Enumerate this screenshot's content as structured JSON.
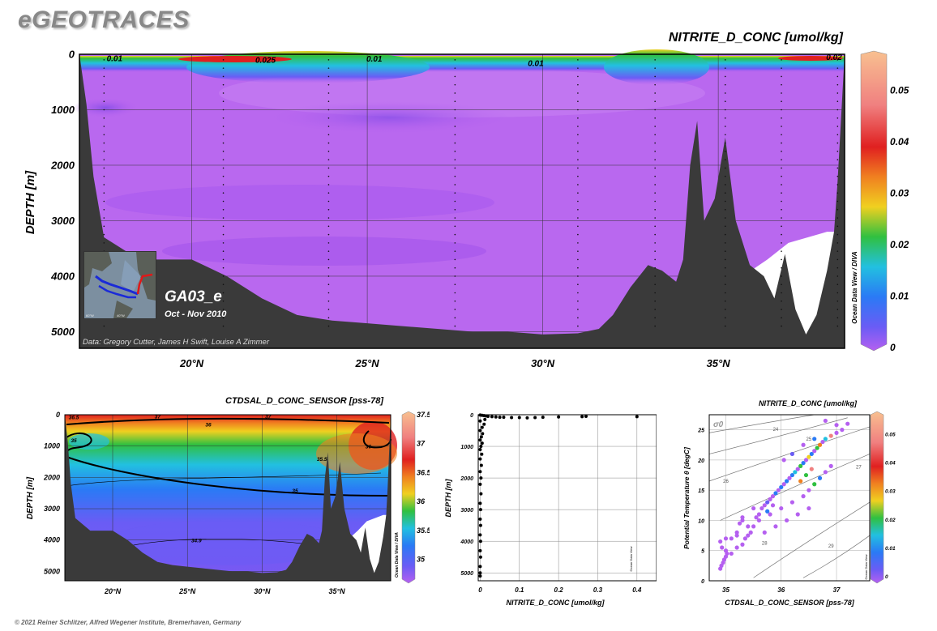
{
  "app_title": "eGEOTRACES",
  "footer": "© 2021 Reiner Schlitzer, Alfred Wegener Institute, Bremerhaven, Germany",
  "colors": {
    "seafloor": "#3a3a3a",
    "colormap": [
      "#b560f0",
      "#6a5cf5",
      "#2a7af5",
      "#22c0e0",
      "#30c040",
      "#f0d020",
      "#f08020",
      "#e02020",
      "#f08080",
      "#f8c090"
    ]
  },
  "main_section": {
    "title": "NITRITE_D_CONC [umol/kg]",
    "section_name": "GA03_e",
    "period": "Oct - Nov 2010",
    "credit": "Data: Gregory Cutter, James H Swift, Louise A Zimmer",
    "side_label": "Ocean Data View / DIVA"
  },
  "small_section": {
    "title": "CTDSAL_D_CONC_SENSOR [pss-78]",
    "side_label": "Ocean Data View / DIVA"
  },
  "scatter_plot": {
    "side_label": "Ocean Data View"
  },
  "ts_plot": {
    "title": "NITRITE_D_CONC [umol/kg]",
    "sigma_label": "σ0",
    "side_label": "Ocean Data View"
  },
  "chart_data": [
    {
      "type": "heatmap",
      "title": "NITRITE_D_CONC [umol/kg]",
      "xlabel": "",
      "ylabel": "DEPTH [m]",
      "x_ticks": [
        "20°N",
        "25°N",
        "30°N",
        "35°N"
      ],
      "x_tick_values": [
        20,
        25,
        30,
        35
      ],
      "xlim": [
        16.8,
        38.6
      ],
      "y_ticks": [
        "0",
        "1000",
        "2000",
        "3000",
        "4000",
        "5000"
      ],
      "y_tick_values": [
        0,
        1000,
        2000,
        3000,
        4000,
        5000
      ],
      "ylim": [
        0,
        5300
      ],
      "colorbar": {
        "ticks": [
          "0",
          "0.01",
          "0.02",
          "0.03",
          "0.04",
          "0.05"
        ],
        "tick_values": [
          0,
          0.01,
          0.02,
          0.03,
          0.04,
          0.05
        ],
        "range": [
          0,
          0.057
        ]
      },
      "contour_labels": [
        {
          "text": "0.01",
          "x": 17.8,
          "depth": 80
        },
        {
          "text": "0.025",
          "x": 22.1,
          "depth": 110
        },
        {
          "text": "0.01",
          "x": 25.2,
          "depth": 90
        },
        {
          "text": "0.01",
          "x": 29.8,
          "depth": 170
        },
        {
          "text": "0.02",
          "x": 38.3,
          "depth": 60
        }
      ],
      "stations_x": [
        17.5,
        20.9,
        23.9,
        27.5,
        31.0,
        33.2,
        35.2,
        36.8,
        38.4
      ],
      "seafloor": [
        [
          16.8,
          0
        ],
        [
          17.0,
          900
        ],
        [
          17.2,
          2200
        ],
        [
          17.5,
          3300
        ],
        [
          18.5,
          3700
        ],
        [
          20.0,
          3700
        ],
        [
          21.0,
          4000
        ],
        [
          22.0,
          4400
        ],
        [
          23.0,
          4700
        ],
        [
          24.0,
          4800
        ],
        [
          25.0,
          4850
        ],
        [
          26.0,
          4900
        ],
        [
          27.0,
          4950
        ],
        [
          28.0,
          5000
        ],
        [
          29.0,
          5000
        ],
        [
          30.0,
          5050
        ],
        [
          31.0,
          5030
        ],
        [
          31.6,
          4950
        ],
        [
          32.0,
          4700
        ],
        [
          32.5,
          4200
        ],
        [
          33.0,
          3800
        ],
        [
          33.4,
          3900
        ],
        [
          33.8,
          4100
        ],
        [
          34.0,
          3700
        ],
        [
          34.2,
          2000
        ],
        [
          34.4,
          1200
        ],
        [
          34.6,
          3000
        ],
        [
          34.9,
          2600
        ],
        [
          35.2,
          1500
        ],
        [
          35.5,
          3000
        ],
        [
          35.9,
          3800
        ],
        [
          36.3,
          4000
        ],
        [
          36.6,
          4400
        ],
        [
          36.9,
          3600
        ],
        [
          37.2,
          4600
        ],
        [
          37.5,
          5050
        ],
        [
          37.8,
          4700
        ],
        [
          38.1,
          3900
        ],
        [
          38.3,
          3200
        ],
        [
          38.4,
          2300
        ],
        [
          38.6,
          0
        ]
      ],
      "blank_region": [
        [
          35.7,
          4000
        ],
        [
          36.4,
          3700
        ],
        [
          37.0,
          3400
        ],
        [
          38.1,
          3200
        ],
        [
          38.3,
          3200
        ],
        [
          38.0,
          5100
        ],
        [
          37.0,
          5100
        ],
        [
          36.2,
          4400
        ]
      ]
    },
    {
      "type": "heatmap",
      "title": "CTDSAL_D_CONC_SENSOR [pss-78]",
      "xlabel": "",
      "ylabel": "DEPTH [m]",
      "x_ticks": [
        "20°N",
        "25°N",
        "30°N",
        "35°N"
      ],
      "x_tick_values": [
        20,
        25,
        30,
        35
      ],
      "xlim": [
        16.8,
        38.6
      ],
      "y_ticks": [
        "0",
        "1000",
        "2000",
        "3000",
        "4000",
        "5000"
      ],
      "y_tick_values": [
        0,
        1000,
        2000,
        3000,
        4000,
        5000
      ],
      "ylim": [
        0,
        5300
      ],
      "colorbar": {
        "ticks": [
          "35",
          "35.5",
          "36",
          "36.5",
          "37",
          "37.5"
        ],
        "tick_values": [
          35,
          35.5,
          36,
          36.5,
          37,
          37.5
        ],
        "range": [
          34.7,
          37.5
        ]
      },
      "contour_labels": [
        {
          "text": "36.5",
          "x": 17.4,
          "depth": 60
        },
        {
          "text": "37",
          "x": 23.0,
          "depth": 40
        },
        {
          "text": "37",
          "x": 30.4,
          "depth": 40
        },
        {
          "text": "36",
          "x": 26.4,
          "depth": 300
        },
        {
          "text": "35",
          "x": 17.4,
          "depth": 800
        },
        {
          "text": "35.5",
          "x": 34.0,
          "depth": 1400
        },
        {
          "text": "36",
          "x": 37.1,
          "depth": 1000
        },
        {
          "text": "35",
          "x": 32.2,
          "depth": 2400
        },
        {
          "text": "34.9",
          "x": 25.6,
          "depth": 4000
        }
      ]
    },
    {
      "type": "scatter",
      "title": "",
      "xlabel": "NITRITE_D_CONC [umol/kg]",
      "ylabel": "DEPTH [m]",
      "x_ticks": [
        "0",
        "0.1",
        "0.2",
        "0.3",
        "0.4"
      ],
      "x_tick_values": [
        0,
        0.1,
        0.2,
        0.3,
        0.4
      ],
      "xlim": [
        -0.005,
        0.45
      ],
      "y_ticks": [
        "0",
        "1000",
        "2000",
        "3000",
        "4000",
        "5000"
      ],
      "y_tick_values": [
        0,
        1000,
        2000,
        3000,
        4000,
        5000
      ],
      "ylim": [
        0,
        5250
      ],
      "points": [
        [
          0.0,
          10
        ],
        [
          0.005,
          20
        ],
        [
          0.01,
          30
        ],
        [
          0.015,
          40
        ],
        [
          0.02,
          50
        ],
        [
          0.03,
          60
        ],
        [
          0.04,
          70
        ],
        [
          0.05,
          80
        ],
        [
          0.06,
          80
        ],
        [
          0.08,
          90
        ],
        [
          0.1,
          90
        ],
        [
          0.12,
          100
        ],
        [
          0.14,
          90
        ],
        [
          0.16,
          80
        ],
        [
          0.2,
          70
        ],
        [
          0.26,
          60
        ],
        [
          0.27,
          50
        ],
        [
          0.4,
          60
        ],
        [
          0.012,
          150
        ],
        [
          0.0,
          200
        ],
        [
          0.01,
          300
        ],
        [
          0.005,
          400
        ],
        [
          0.0,
          500
        ],
        [
          0.006,
          600
        ],
        [
          0.003,
          700
        ],
        [
          0.0,
          800
        ],
        [
          0.005,
          900
        ],
        [
          0.002,
          1000
        ],
        [
          0.0,
          1100
        ],
        [
          0.004,
          1250
        ],
        [
          0.0,
          1400
        ],
        [
          0.003,
          1600
        ],
        [
          0.0,
          1800
        ],
        [
          0.002,
          2000
        ],
        [
          0.0,
          2200
        ],
        [
          0.002,
          2500
        ],
        [
          0.0,
          2800
        ],
        [
          0.001,
          3000
        ],
        [
          0.0,
          3300
        ],
        [
          0.001,
          3500
        ],
        [
          0.0,
          3800
        ],
        [
          0.001,
          4000
        ],
        [
          0.0,
          4300
        ],
        [
          0.001,
          4500
        ],
        [
          0.0,
          4800
        ],
        [
          0.0,
          5000
        ],
        [
          0.0,
          5100
        ]
      ]
    },
    {
      "type": "scatter",
      "title": "NITRITE_D_CONC [umol/kg]",
      "xlabel": "CTDSAL_D_CONC_SENSOR [pss-78]",
      "ylabel": "Potential Temperature θ [degC]",
      "x_ticks": [
        "35",
        "36",
        "37"
      ],
      "x_tick_values": [
        35,
        36,
        37
      ],
      "xlim": [
        34.7,
        37.6
      ],
      "y_ticks": [
        "0",
        "5",
        "10",
        "15",
        "20",
        "25"
      ],
      "y_tick_values": [
        0,
        5,
        10,
        15,
        20,
        25
      ],
      "ylim": [
        0,
        27.5
      ],
      "isopycnal_labels": [
        "24",
        "25",
        "26",
        "27",
        "28",
        "29"
      ],
      "colorbar": {
        "ticks": [
          "0",
          "0.01",
          "0.02",
          "0.03",
          "0.04",
          "0.05"
        ],
        "tick_values": [
          0,
          0.01,
          0.02,
          0.03,
          0.04,
          0.05
        ],
        "range": [
          0,
          0.057
        ]
      },
      "points": [
        [
          34.9,
          2.0,
          0
        ],
        [
          34.92,
          2.5,
          0
        ],
        [
          34.95,
          3.0,
          0
        ],
        [
          34.97,
          3.5,
          0
        ],
        [
          35.0,
          4.0,
          0
        ],
        [
          35.02,
          4.5,
          0
        ],
        [
          34.93,
          5.5,
          0
        ],
        [
          34.9,
          6.5,
          0
        ],
        [
          35.0,
          5.0,
          0
        ],
        [
          35.1,
          4.5,
          0
        ],
        [
          35.2,
          5.5,
          0
        ],
        [
          35.3,
          6.0,
          0
        ],
        [
          35.35,
          7.0,
          0
        ],
        [
          35.4,
          7.5,
          0
        ],
        [
          35.45,
          8.0,
          0
        ],
        [
          35.5,
          9.0,
          0
        ],
        [
          35.2,
          8.0,
          0
        ],
        [
          35.1,
          7.0,
          0
        ],
        [
          35.25,
          9.5,
          0
        ],
        [
          35.3,
          10.0,
          0
        ],
        [
          35.55,
          10.5,
          0
        ],
        [
          35.6,
          11.0,
          0
        ],
        [
          35.65,
          12.0,
          0
        ],
        [
          35.7,
          12.5,
          0
        ],
        [
          35.75,
          13.0,
          0.005
        ],
        [
          35.8,
          13.5,
          0
        ],
        [
          35.85,
          14.0,
          0
        ],
        [
          35.9,
          14.5,
          0.008
        ],
        [
          35.95,
          15.0,
          0
        ],
        [
          36.0,
          15.5,
          0.01
        ],
        [
          36.05,
          16.0,
          0
        ],
        [
          36.1,
          16.5,
          0.012
        ],
        [
          36.15,
          17.0,
          0
        ],
        [
          36.2,
          17.5,
          0.01
        ],
        [
          36.25,
          18.0,
          0.015
        ],
        [
          36.3,
          18.5,
          0
        ],
        [
          36.35,
          19.0,
          0.02
        ],
        [
          36.4,
          19.5,
          0.01
        ],
        [
          36.45,
          20.0,
          0
        ],
        [
          36.5,
          20.5,
          0.025
        ],
        [
          36.55,
          21.0,
          0.01
        ],
        [
          36.6,
          21.5,
          0
        ],
        [
          36.65,
          22.0,
          0.02
        ],
        [
          36.7,
          22.5,
          0.03
        ],
        [
          36.75,
          23.0,
          0
        ],
        [
          36.8,
          23.5,
          0.015
        ],
        [
          36.9,
          24.0,
          0.04
        ],
        [
          37.0,
          24.5,
          0
        ],
        [
          37.1,
          25.0,
          0
        ],
        [
          37.2,
          26.0,
          0
        ],
        [
          37.0,
          25.8,
          0
        ],
        [
          36.8,
          26.5,
          0
        ],
        [
          36.6,
          16.0,
          0.02
        ],
        [
          36.7,
          17.0,
          0.01
        ],
        [
          36.8,
          18.0,
          0
        ],
        [
          36.9,
          19.0,
          0
        ],
        [
          36.5,
          15.0,
          0
        ],
        [
          36.4,
          14.0,
          0
        ],
        [
          36.2,
          13.0,
          0
        ],
        [
          36.0,
          12.0,
          0
        ],
        [
          35.8,
          11.0,
          0
        ],
        [
          35.6,
          10.0,
          0
        ],
        [
          35.4,
          9.0,
          0
        ],
        [
          35.2,
          7.5,
          0
        ],
        [
          35.0,
          7.0,
          0
        ],
        [
          35.7,
          8.0,
          0
        ],
        [
          35.9,
          9.0,
          0
        ],
        [
          36.1,
          10.0,
          0
        ],
        [
          36.3,
          11.0,
          0
        ],
        [
          36.5,
          12.0,
          0
        ],
        [
          35.5,
          12.0,
          0
        ],
        [
          35.3,
          10.5,
          0
        ],
        [
          36.05,
          20.0,
          0
        ],
        [
          36.2,
          21.0,
          0.005
        ],
        [
          36.4,
          22.5,
          0
        ],
        [
          36.6,
          23.5,
          0.01
        ],
        [
          36.35,
          16.5,
          0.03
        ],
        [
          36.45,
          17.5,
          0.02
        ],
        [
          36.55,
          18.5,
          0.04
        ],
        [
          35.75,
          11.5,
          0.01
        ],
        [
          35.85,
          12.5,
          0
        ]
      ]
    }
  ]
}
